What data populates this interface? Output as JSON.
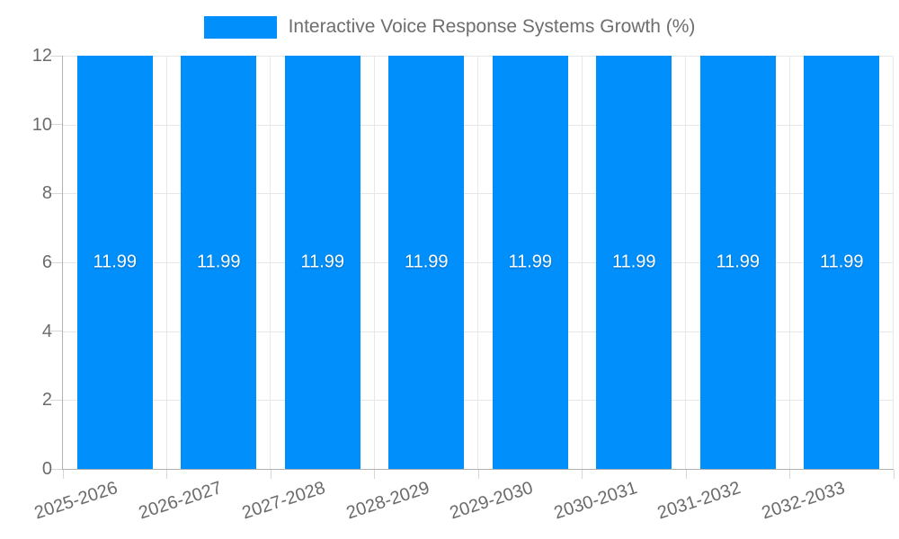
{
  "chart": {
    "legend": {
      "label": "Interactive Voice Response Systems Growth (%)"
    }
  },
  "chart_data": {
    "type": "bar",
    "title": "Interactive Voice Response Systems Growth (%)",
    "series": [
      {
        "name": "Interactive Voice Response Systems Growth (%)",
        "values": [
          11.99,
          11.99,
          11.99,
          11.99,
          11.99,
          11.99,
          11.99,
          11.99
        ]
      }
    ],
    "categories": [
      "2025-2026",
      "2026-2027",
      "2027-2028",
      "2028-2029",
      "2029-2030",
      "2030-2031",
      "2031-2032",
      "2032-2033"
    ],
    "value_labels": [
      "11.99",
      "11.99",
      "11.99",
      "11.99",
      "11.99",
      "11.99",
      "11.99",
      "11.99"
    ],
    "xlabel": "",
    "ylabel": "",
    "ylim": [
      0,
      12
    ],
    "yticks": [
      0,
      2,
      4,
      6,
      8,
      10,
      12
    ],
    "grid": true,
    "legend_position": "top",
    "data_label_position": "center",
    "colors": {
      "bar": "#008FFB",
      "grid": "#e7e7e7",
      "axis": "#b1b1b1",
      "tick": "#d6d6d6",
      "axis_label": "#6b6b6b",
      "legend_text": "#6e6e6e",
      "data_label": "#ffffff",
      "background": "#ffffff"
    }
  }
}
